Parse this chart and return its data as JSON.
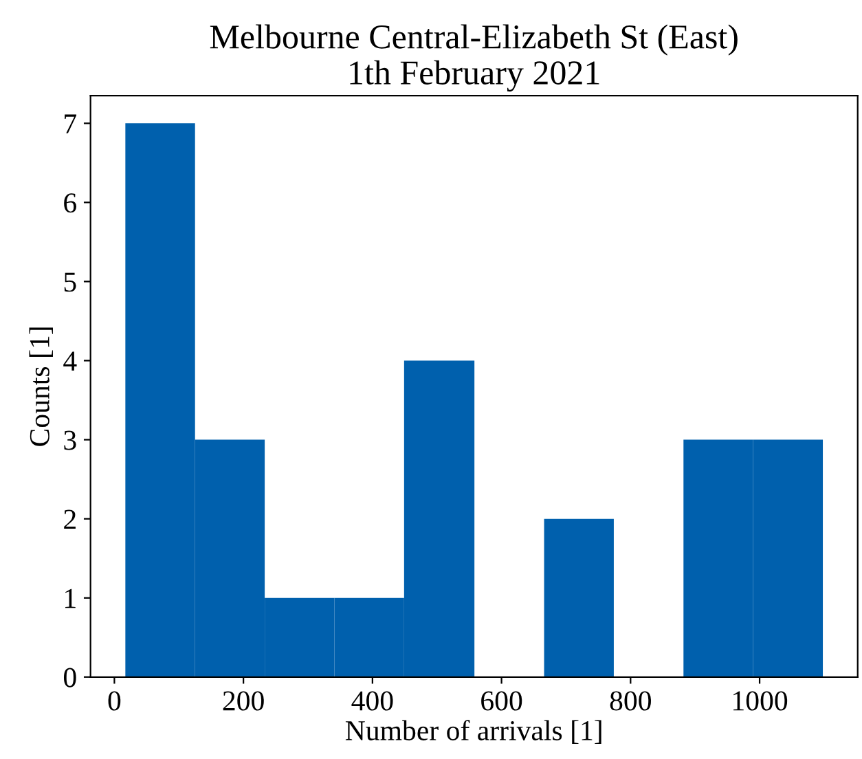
{
  "chart_data": {
    "type": "histogram",
    "title": "Melbourne Central-Elizabeth St (East)\n1th February 2021",
    "xlabel": "Number of arrivals [1]",
    "ylabel": "Counts [1]",
    "bins": [
      17,
      125,
      233,
      341,
      449,
      558,
      666,
      774,
      882,
      990,
      1098
    ],
    "values": [
      7,
      3,
      1,
      1,
      4,
      0,
      2,
      0,
      3,
      3
    ],
    "color": "#0060ad",
    "xlim": [
      -37,
      1152
    ],
    "xticks": [
      0,
      200,
      400,
      600,
      800,
      1000
    ],
    "ylim": [
      0,
      7.35
    ],
    "yticks": [
      0,
      1,
      2,
      3,
      4,
      5,
      6,
      7
    ],
    "grid": false
  }
}
